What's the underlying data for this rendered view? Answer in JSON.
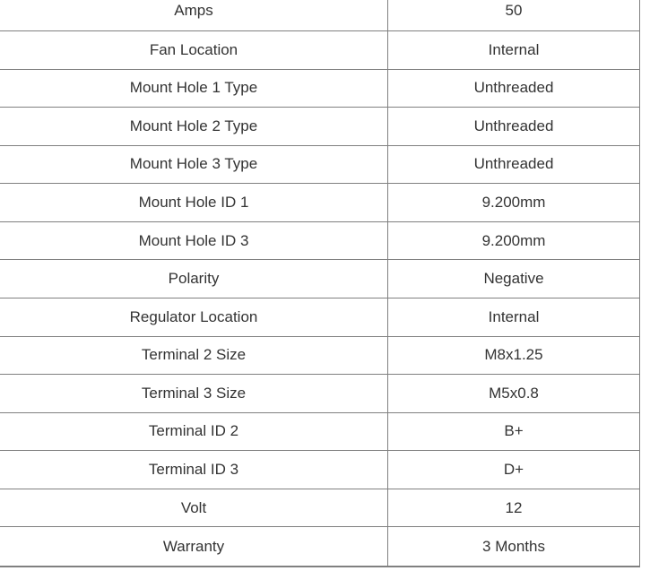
{
  "colors": {
    "border": "#808080",
    "text": "#333333",
    "background": "#ffffff"
  },
  "table": {
    "rows": [
      {
        "label": "Amps",
        "value": "50"
      },
      {
        "label": "Fan Location",
        "value": "Internal"
      },
      {
        "label": "Mount Hole 1 Type",
        "value": "Unthreaded"
      },
      {
        "label": "Mount Hole 2 Type",
        "value": "Unthreaded"
      },
      {
        "label": "Mount Hole 3 Type",
        "value": "Unthreaded"
      },
      {
        "label": "Mount Hole ID 1",
        "value": "9.200mm"
      },
      {
        "label": "Mount Hole ID 3",
        "value": "9.200mm"
      },
      {
        "label": "Polarity",
        "value": "Negative"
      },
      {
        "label": "Regulator Location",
        "value": "Internal"
      },
      {
        "label": "Terminal 2 Size",
        "value": "M8x1.25"
      },
      {
        "label": "Terminal 3 Size",
        "value": "M5x0.8"
      },
      {
        "label": "Terminal ID 2",
        "value": "B+"
      },
      {
        "label": "Terminal ID 3",
        "value": "D+"
      },
      {
        "label": "Volt",
        "value": "12"
      },
      {
        "label": "Warranty",
        "value": "3 Months"
      }
    ]
  }
}
